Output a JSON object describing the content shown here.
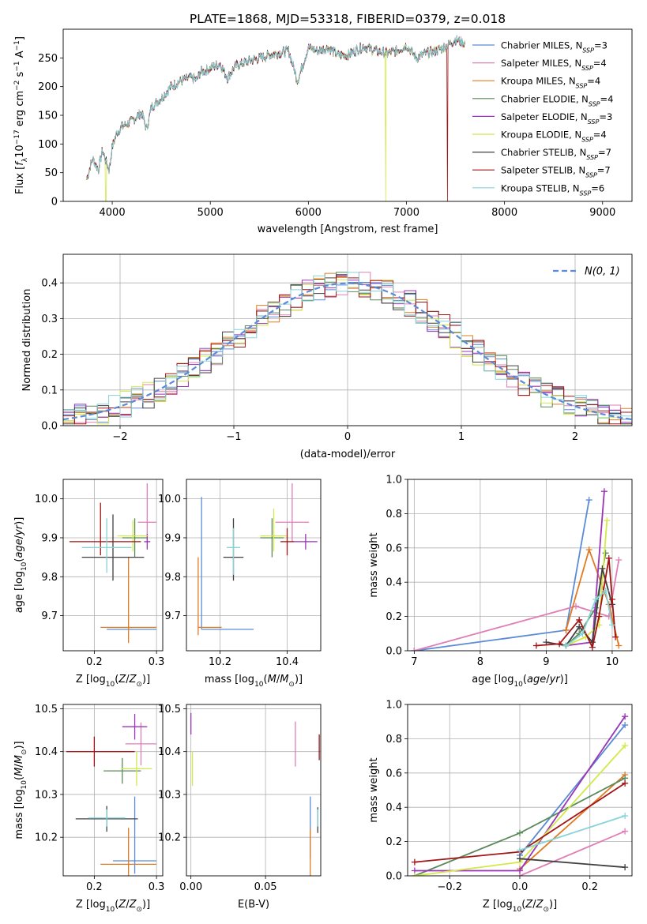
{
  "figure": {
    "title": "PLATE=1868, MJD=53318, FIBERID=0379, z=0.018"
  },
  "models": [
    {
      "name": "Chabrier MILES",
      "nssp": "3",
      "color": "#5b8bd6"
    },
    {
      "name": "Salpeter MILES",
      "nssp": "4",
      "color": "#e07eb6"
    },
    {
      "name": "Kroupa MILES",
      "nssp": "4",
      "color": "#e07b23"
    },
    {
      "name": "Chabrier ELODIE",
      "nssp": "4",
      "color": "#5a8a5a"
    },
    {
      "name": "Salpeter ELODIE",
      "nssp": "3",
      "color": "#9a34b8"
    },
    {
      "name": "Kroupa ELODIE",
      "nssp": "4",
      "color": "#d4e84a"
    },
    {
      "name": "Chabrier STELIB",
      "nssp": "7",
      "color": "#404040"
    },
    {
      "name": "Salpeter STELIB",
      "nssp": "7",
      "color": "#a31515"
    },
    {
      "name": "Kroupa STELIB",
      "nssp": "6",
      "color": "#86d3d8"
    }
  ],
  "chart_data": [
    {
      "id": "spectrum",
      "type": "line",
      "xlabel": "wavelength [Angstrom, rest frame]",
      "ylabel": "Flux [f_λ 10^-17 erg cm^-2 s^-1 A^-1]",
      "xlim": [
        3500,
        9300
      ],
      "ylim": [
        0,
        300
      ],
      "xticks": [
        4000,
        5000,
        6000,
        7000,
        8000,
        9000
      ],
      "yticks": [
        0,
        50,
        100,
        150,
        200,
        250
      ],
      "legend": "upper right",
      "x": [
        3740,
        3800,
        3860,
        3900,
        3935,
        3970,
        4000,
        4050,
        4100,
        4200,
        4300,
        4350,
        4400,
        4500,
        4600,
        4700,
        4800,
        4860,
        4900,
        5000,
        5100,
        5175,
        5250,
        5400,
        5600,
        5800,
        5890,
        6000,
        6100,
        6200,
        6300,
        6400,
        6563,
        6700,
        6800,
        6900,
        7000,
        7100,
        7200,
        7300,
        7400,
        7500,
        7600
      ],
      "y": [
        40,
        75,
        55,
        90,
        70,
        55,
        95,
        120,
        130,
        140,
        155,
        125,
        165,
        180,
        200,
        210,
        215,
        212,
        225,
        232,
        240,
        215,
        235,
        245,
        255,
        262,
        210,
        268,
        262,
        268,
        255,
        255,
        270,
        262,
        258,
        262,
        272,
        250,
        258,
        262,
        270,
        282,
        275
      ],
      "dips": [
        {
          "model": "Kroupa ELODIE",
          "x": 3935,
          "to": 0
        },
        {
          "model": "Kroupa ELODIE",
          "x": 6790,
          "to": 0
        },
        {
          "model": "Salpeter STELIB",
          "x": 7420,
          "to": 0
        }
      ]
    },
    {
      "id": "residual-histogram",
      "type": "histogram",
      "xlabel": "(data-model)/error",
      "ylabel": "Normed distribution",
      "xlim": [
        -2.5,
        2.5
      ],
      "ylim": [
        0,
        0.48
      ],
      "xticks": [
        -2,
        -1,
        0,
        1,
        2
      ],
      "yticks": [
        0.0,
        0.1,
        0.2,
        0.3,
        0.4
      ],
      "grid": true,
      "legend": "upper right",
      "gaussian_label": "N(0, 1)",
      "gaussian_color": "#5b8bd6",
      "bin_edges_from": -2.5,
      "bin_width": 0.1,
      "bins": 50
    },
    {
      "id": "age-vs-Z",
      "type": "errorbar",
      "xlabel": "Z [log10(Z/Z⊙)]",
      "ylabel": "age [log10(age/yr)]",
      "xlim": [
        0.15,
        0.31
      ],
      "ylim": [
        9.61,
        10.05
      ],
      "xticks": [
        0.2,
        0.3
      ],
      "yticks": [
        9.7,
        9.8,
        9.9,
        10.0
      ],
      "points": [
        {
          "model": "Chabrier MILES",
          "x": 0.26,
          "xerr": [
            0.04,
            0.04
          ],
          "y": 9.665,
          "yerr": [
            0,
            0
          ]
        },
        {
          "model": "Kroupa MILES",
          "x": 0.255,
          "xerr": [
            0.045,
            0.045
          ],
          "y": 9.67,
          "yerr": [
            0.04,
            0.18
          ]
        },
        {
          "model": "Salpeter MILES",
          "x": 0.285,
          "xerr": [
            0.015,
            0.015
          ],
          "y": 9.94,
          "yerr": [
            0.05,
            0.1
          ]
        },
        {
          "model": "Chabrier ELODIE",
          "x": 0.265,
          "xerr": [
            0.02,
            0.02
          ],
          "y": 9.9,
          "yerr": [
            0.05,
            0.05
          ]
        },
        {
          "model": "Salpeter ELODIE",
          "x": 0.285,
          "xerr": [
            0.005,
            0.005
          ],
          "y": 9.89,
          "yerr": [
            0.02,
            0.02
          ]
        },
        {
          "model": "Kroupa ELODIE",
          "x": 0.262,
          "xerr": [
            0.025,
            0.025
          ],
          "y": 9.905,
          "yerr": [
            0.04,
            0.04
          ]
        },
        {
          "model": "Chabrier STELIB",
          "x": 0.23,
          "xerr": [
            0.05,
            0.05
          ],
          "y": 9.85,
          "yerr": [
            0.06,
            0.11
          ]
        },
        {
          "model": "Salpeter STELIB",
          "x": 0.21,
          "xerr": [
            0.05,
            0.065
          ],
          "y": 9.89,
          "yerr": [
            0.035,
            0.1
          ]
        },
        {
          "model": "Kroupa STELIB",
          "x": 0.22,
          "xerr": [
            0.04,
            0.04
          ],
          "y": 9.875,
          "yerr": [
            0.065,
            0.075
          ]
        }
      ]
    },
    {
      "id": "age-vs-mass",
      "type": "errorbar",
      "xlabel": "mass [log10(M/M⊙)]",
      "ylabel": "",
      "xlim": [
        10.1,
        10.5
      ],
      "ylim": [
        9.61,
        10.05
      ],
      "xticks": [
        10.2,
        10.4
      ],
      "yticks": [
        9.7,
        9.8,
        9.9,
        10.0
      ],
      "points": [
        {
          "model": "Chabrier MILES",
          "x": 10.145,
          "xerr": [
            0,
            0.155
          ],
          "y": 9.665,
          "yerr": [
            0,
            0.34
          ]
        },
        {
          "model": "Kroupa MILES",
          "x": 10.135,
          "xerr": [
            0,
            0.07
          ],
          "y": 9.67,
          "yerr": [
            0.02,
            0.18
          ]
        },
        {
          "model": "Salpeter MILES",
          "x": 10.415,
          "xerr": [
            0.05,
            0.05
          ],
          "y": 9.94,
          "yerr": [
            0.05,
            0.1
          ]
        },
        {
          "model": "Chabrier ELODIE",
          "x": 10.355,
          "xerr": [
            0.035,
            0.035
          ],
          "y": 9.9,
          "yerr": [
            0.05,
            0.05
          ]
        },
        {
          "model": "Salpeter ELODIE",
          "x": 10.455,
          "xerr": [
            0.04,
            0.035
          ],
          "y": 9.89,
          "yerr": [
            0.02,
            0.02
          ]
        },
        {
          "model": "Kroupa ELODIE",
          "x": 10.36,
          "xerr": [
            0.04,
            0.04
          ],
          "y": 9.905,
          "yerr": [
            0.04,
            0.07
          ]
        },
        {
          "model": "Chabrier STELIB",
          "x": 10.24,
          "xerr": [
            0.03,
            0.03
          ],
          "y": 9.85,
          "yerr": [
            0.06,
            0.1
          ]
        },
        {
          "model": "Salpeter STELIB",
          "x": 10.4,
          "xerr": [
            0.02,
            0.02
          ],
          "y": 9.89,
          "yerr": [
            0.035,
            0.035
          ]
        },
        {
          "model": "Kroupa STELIB",
          "x": 10.24,
          "xerr": [
            0.02,
            0.02
          ],
          "y": 9.875,
          "yerr": [
            0.07,
            0.05
          ]
        }
      ]
    },
    {
      "id": "mass-weight-vs-age",
      "type": "line",
      "xlabel": "age [log10(age/yr)]",
      "ylabel": "mass weight",
      "xlim": [
        6.9,
        10.3
      ],
      "ylim": [
        0,
        1.0
      ],
      "xticks": [
        7,
        8,
        9,
        10
      ],
      "yticks": [
        0.0,
        0.2,
        0.4,
        0.6,
        0.8,
        1.0
      ],
      "grid": true,
      "series": [
        {
          "model": "Chabrier MILES",
          "x": [
            7.0,
            9.3,
            9.65
          ],
          "y": [
            0.0,
            0.12,
            0.88
          ]
        },
        {
          "model": "Salpeter MILES",
          "x": [
            7.0,
            9.45,
            9.95,
            10.1
          ],
          "y": [
            0.0,
            0.26,
            0.2,
            0.53
          ]
        },
        {
          "model": "Kroupa MILES",
          "x": [
            9.3,
            9.65,
            9.95,
            10.1
          ],
          "y": [
            0.12,
            0.59,
            0.27,
            0.03
          ]
        },
        {
          "model": "Chabrier ELODIE",
          "x": [
            9.3,
            9.5,
            9.75,
            9.9
          ],
          "y": [
            0.03,
            0.1,
            0.25,
            0.57
          ]
        },
        {
          "model": "Salpeter ELODIE",
          "x": [
            9.3,
            9.7,
            9.88
          ],
          "y": [
            0.03,
            0.05,
            0.93
          ]
        },
        {
          "model": "Kroupa ELODIE",
          "x": [
            9.3,
            9.6,
            9.8,
            9.92
          ],
          "y": [
            0.03,
            0.08,
            0.15,
            0.76
          ]
        },
        {
          "model": "Chabrier STELIB",
          "x": [
            9.0,
            9.3,
            9.5,
            9.7,
            9.85,
            10.0
          ],
          "y": [
            0.05,
            0.03,
            0.14,
            0.05,
            0.48,
            0.27
          ]
        },
        {
          "model": "Salpeter STELIB",
          "x": [
            8.85,
            9.2,
            9.5,
            9.7,
            9.8,
            9.95,
            10.0,
            10.05
          ],
          "y": [
            0.03,
            0.04,
            0.18,
            0.02,
            0.2,
            0.54,
            0.3,
            0.08
          ]
        },
        {
          "model": "Kroupa STELIB",
          "x": [
            9.3,
            9.55,
            9.75,
            9.9,
            10.0
          ],
          "y": [
            0.03,
            0.1,
            0.3,
            0.35,
            0.15
          ]
        }
      ]
    },
    {
      "id": "mass-vs-Z",
      "type": "errorbar",
      "xlabel": "Z [log10(Z/Z⊙)]",
      "ylabel": "mass [log10(M/M⊙)]",
      "xlim": [
        0.15,
        0.31
      ],
      "ylim": [
        10.11,
        10.51
      ],
      "xticks": [
        0.2,
        0.3
      ],
      "yticks": [
        10.2,
        10.3,
        10.4,
        10.5
      ],
      "points": [
        {
          "model": "Chabrier MILES",
          "x": 0.265,
          "xerr": [
            0.035,
            0.035
          ],
          "y": 10.145,
          "yerr": [
            0.03,
            0.15
          ]
        },
        {
          "model": "Kroupa MILES",
          "x": 0.255,
          "xerr": [
            0.045,
            0.045
          ],
          "y": 10.137,
          "yerr": [
            0.03,
            0.085
          ]
        },
        {
          "model": "Salpeter MILES",
          "x": 0.275,
          "xerr": [
            0.025,
            0.025
          ],
          "y": 10.418,
          "yerr": [
            0.05,
            0.05
          ]
        },
        {
          "model": "Chabrier ELODIE",
          "x": 0.245,
          "xerr": [
            0.03,
            0.03
          ],
          "y": 10.355,
          "yerr": [
            0.03,
            0.03
          ]
        },
        {
          "model": "Salpeter ELODIE",
          "x": 0.265,
          "xerr": [
            0.02,
            0.02
          ],
          "y": 10.458,
          "yerr": [
            0.03,
            0.03
          ]
        },
        {
          "model": "Kroupa ELODIE",
          "x": 0.268,
          "xerr": [
            0.025,
            0.025
          ],
          "y": 10.36,
          "yerr": [
            0.04,
            0.04
          ]
        },
        {
          "model": "Chabrier STELIB",
          "x": 0.22,
          "xerr": [
            0.05,
            0.05
          ],
          "y": 10.243,
          "yerr": [
            0.03,
            0.03
          ]
        },
        {
          "model": "Salpeter STELIB",
          "x": 0.2,
          "xerr": [
            0.045,
            0.065
          ],
          "y": 10.4,
          "yerr": [
            0.035,
            0.035
          ]
        },
        {
          "model": "Kroupa STELIB",
          "x": 0.22,
          "xerr": [
            0.03,
            0.03
          ],
          "y": 10.245,
          "yerr": [
            0.02,
            0.02
          ]
        }
      ]
    },
    {
      "id": "mass-vs-ebv",
      "type": "errorbar",
      "xlabel": "E(B-V)",
      "ylabel": "",
      "xlim": [
        -0.003,
        0.087
      ],
      "ylim": [
        10.11,
        10.51
      ],
      "xticks": [
        0.0,
        0.05
      ],
      "yticks": [
        10.2,
        10.3,
        10.4,
        10.5
      ],
      "points": [
        {
          "model": "Chabrier MILES",
          "x": 0.08,
          "xerr": [
            0,
            0
          ],
          "y": 10.22,
          "yerr": [
            0.07,
            0.075
          ]
        },
        {
          "model": "Kroupa MILES",
          "x": 0.08,
          "xerr": [
            0,
            0
          ],
          "y": 10.15,
          "yerr": [
            0.04,
            0.07
          ]
        },
        {
          "model": "Salpeter MILES",
          "x": 0.07,
          "xerr": [
            0,
            0
          ],
          "y": 10.42,
          "yerr": [
            0.055,
            0.05
          ]
        },
        {
          "model": "Salpeter ELODIE",
          "x": 0.0,
          "xerr": [
            0,
            0
          ],
          "y": 10.46,
          "yerr": [
            0.02,
            0.03
          ]
        },
        {
          "model": "Kroupa ELODIE",
          "x": 0.001,
          "xerr": [
            0,
            0
          ],
          "y": 10.36,
          "yerr": [
            0.04,
            0.04
          ]
        },
        {
          "model": "Chabrier STELIB",
          "x": 0.085,
          "xerr": [
            0,
            0
          ],
          "y": 10.24,
          "yerr": [
            0.03,
            0.03
          ]
        },
        {
          "model": "Salpeter STELIB",
          "x": 0.086,
          "xerr": [
            0,
            0
          ],
          "y": 10.4,
          "yerr": [
            0.02,
            0.04
          ]
        },
        {
          "model": "Kroupa STELIB",
          "x": 0.085,
          "xerr": [
            0,
            0
          ],
          "y": 10.245,
          "yerr": [
            0.02,
            0.02
          ]
        }
      ]
    },
    {
      "id": "mass-weight-vs-Z",
      "type": "line",
      "xlabel": "Z [log10(Z/Z⊙)]",
      "ylabel": "mass weight",
      "xlim": [
        -0.32,
        0.32
      ],
      "ylim": [
        0,
        1.0
      ],
      "xticks": [
        -0.2,
        0.0,
        0.2
      ],
      "yticks": [
        0.0,
        0.2,
        0.4,
        0.6,
        0.8,
        1.0
      ],
      "grid": true,
      "series": [
        {
          "model": "Chabrier MILES",
          "x": [
            0.0,
            0.3
          ],
          "y": [
            0.12,
            0.88
          ]
        },
        {
          "model": "Salpeter MILES",
          "x": [
            0.0,
            0.3
          ],
          "y": [
            0.0,
            0.26
          ]
        },
        {
          "model": "Kroupa MILES",
          "x": [
            0.0,
            0.3
          ],
          "y": [
            0.04,
            0.59
          ]
        },
        {
          "model": "Chabrier ELODIE",
          "x": [
            -0.3,
            0.0,
            0.3
          ],
          "y": [
            0.0,
            0.25,
            0.57
          ]
        },
        {
          "model": "Salpeter ELODIE",
          "x": [
            -0.3,
            0.0,
            0.3
          ],
          "y": [
            0.03,
            0.03,
            0.93
          ]
        },
        {
          "model": "Kroupa ELODIE",
          "x": [
            -0.3,
            0.0,
            0.3
          ],
          "y": [
            0.0,
            0.08,
            0.76
          ]
        },
        {
          "model": "Chabrier STELIB",
          "x": [
            0.0,
            0.3
          ],
          "y": [
            0.1,
            0.05
          ]
        },
        {
          "model": "Salpeter STELIB",
          "x": [
            -0.3,
            0.0,
            0.3
          ],
          "y": [
            0.08,
            0.14,
            0.54
          ]
        },
        {
          "model": "Kroupa STELIB",
          "x": [
            0.0,
            0.3
          ],
          "y": [
            0.15,
            0.35
          ]
        }
      ]
    }
  ]
}
